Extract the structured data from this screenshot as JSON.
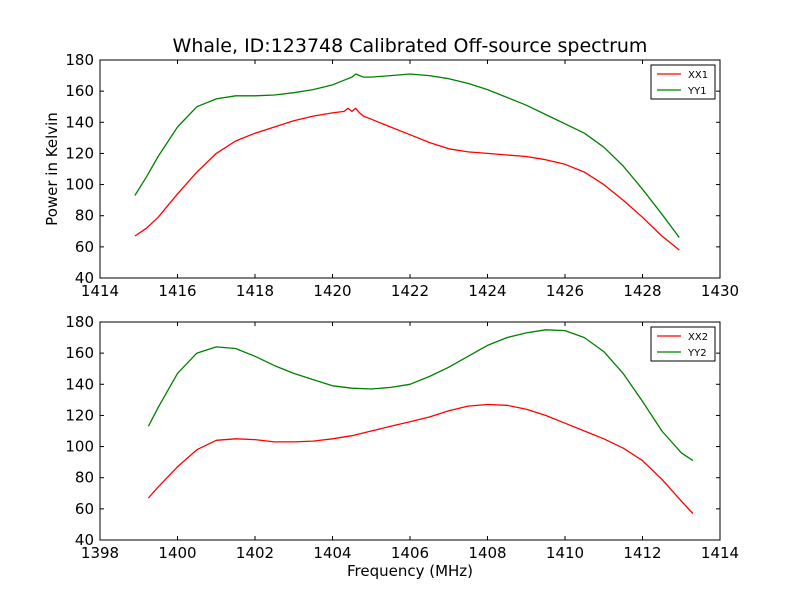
{
  "figure": {
    "title": "Whale, ID:123748 Calibrated Off-source spectrum"
  },
  "chart_data": [
    {
      "type": "line",
      "title": "Whale, ID:123748 Calibrated Off-source spectrum",
      "xlabel": "",
      "ylabel": "Power in Kelvin",
      "xlim": [
        1414,
        1430
      ],
      "ylim": [
        40,
        180
      ],
      "xticks": [
        1414,
        1416,
        1418,
        1420,
        1422,
        1424,
        1426,
        1428,
        1430
      ],
      "xtick_labels": [
        "1414",
        "1416",
        "1418",
        "1420",
        "1422",
        "1424",
        "1426",
        "1428",
        "1430"
      ],
      "yticks": [
        40,
        60,
        80,
        100,
        120,
        140,
        160,
        180
      ],
      "ytick_labels": [
        "40",
        "60",
        "80",
        "100",
        "120",
        "140",
        "160",
        "180"
      ],
      "grid": false,
      "legend": "top-right",
      "series": [
        {
          "name": "XX1",
          "color": "#ff0000",
          "x": [
            1414.9,
            1415.2,
            1415.5,
            1416.0,
            1416.5,
            1417.0,
            1417.5,
            1418.0,
            1418.5,
            1419.0,
            1419.5,
            1420.0,
            1420.3,
            1420.4,
            1420.5,
            1420.6,
            1420.7,
            1420.8,
            1421.0,
            1421.5,
            1422.0,
            1422.5,
            1423.0,
            1423.5,
            1424.0,
            1424.5,
            1425.0,
            1425.5,
            1426.0,
            1426.5,
            1427.0,
            1427.5,
            1428.0,
            1428.5,
            1428.95
          ],
          "y": [
            67,
            72,
            79,
            94,
            108,
            120,
            128,
            133,
            137,
            141,
            144,
            146,
            147,
            149,
            147,
            149,
            146,
            144,
            142,
            137,
            132,
            127,
            123,
            121,
            120,
            119,
            118,
            116,
            113,
            108,
            100,
            90,
            79,
            67,
            58
          ]
        },
        {
          "name": "YY1",
          "color": "#008000",
          "x": [
            1414.9,
            1415.2,
            1415.5,
            1416.0,
            1416.5,
            1417.0,
            1417.5,
            1418.0,
            1418.5,
            1419.0,
            1419.5,
            1420.0,
            1420.3,
            1420.5,
            1420.6,
            1420.7,
            1420.8,
            1421.0,
            1421.5,
            1422.0,
            1422.5,
            1423.0,
            1423.5,
            1424.0,
            1424.5,
            1425.0,
            1425.5,
            1426.0,
            1426.5,
            1427.0,
            1427.5,
            1428.0,
            1428.5,
            1428.95
          ],
          "y": [
            93,
            105,
            118,
            137,
            150,
            155,
            157,
            157,
            157.5,
            159,
            161,
            164,
            167,
            169,
            171,
            170,
            169,
            169,
            170,
            171,
            170,
            168,
            165,
            161,
            156,
            151,
            145,
            139,
            133,
            124,
            112,
            97,
            81,
            66
          ]
        }
      ]
    },
    {
      "type": "line",
      "title": "",
      "xlabel": "Frequency (MHz)",
      "ylabel": "",
      "xlim": [
        1398,
        1414
      ],
      "ylim": [
        40,
        180
      ],
      "xticks": [
        1398,
        1400,
        1402,
        1404,
        1406,
        1408,
        1410,
        1412,
        1414
      ],
      "xtick_labels": [
        "1398",
        "1400",
        "1402",
        "1404",
        "1406",
        "1408",
        "1410",
        "1412",
        "1414"
      ],
      "yticks": [
        40,
        60,
        80,
        100,
        120,
        140,
        160,
        180
      ],
      "ytick_labels": [
        "40",
        "60",
        "80",
        "100",
        "120",
        "140",
        "160",
        "180"
      ],
      "grid": false,
      "legend": "top-right",
      "series": [
        {
          "name": "XX2",
          "color": "#ff0000",
          "x": [
            1399.25,
            1399.5,
            1400.0,
            1400.5,
            1401.0,
            1401.5,
            1402.0,
            1402.5,
            1403.0,
            1403.5,
            1404.0,
            1404.5,
            1405.0,
            1405.5,
            1406.0,
            1406.5,
            1407.0,
            1407.5,
            1408.0,
            1408.5,
            1409.0,
            1409.5,
            1410.0,
            1410.5,
            1411.0,
            1411.5,
            1412.0,
            1412.5,
            1413.0,
            1413.3
          ],
          "y": [
            67,
            74,
            87,
            98,
            104,
            105,
            104.5,
            103,
            103,
            103.5,
            105,
            107,
            110,
            113,
            116,
            119,
            123,
            126,
            127,
            126.5,
            124,
            120,
            115,
            110,
            105,
            99,
            91,
            79,
            65,
            57
          ]
        },
        {
          "name": "YY2",
          "color": "#008000",
          "x": [
            1399.25,
            1399.5,
            1400.0,
            1400.5,
            1401.0,
            1401.5,
            1402.0,
            1402.5,
            1403.0,
            1403.5,
            1404.0,
            1404.5,
            1405.0,
            1405.5,
            1406.0,
            1406.5,
            1407.0,
            1407.5,
            1408.0,
            1408.5,
            1409.0,
            1409.5,
            1410.0,
            1410.5,
            1411.0,
            1411.5,
            1412.0,
            1412.5,
            1413.0,
            1413.3
          ],
          "y": [
            113,
            125,
            147,
            160,
            164,
            163,
            158,
            152,
            147,
            143,
            139,
            137.5,
            137,
            138,
            140,
            145,
            151,
            158,
            165,
            170,
            173,
            175,
            174.5,
            170,
            161,
            147,
            129,
            110,
            96,
            91
          ]
        }
      ]
    }
  ]
}
